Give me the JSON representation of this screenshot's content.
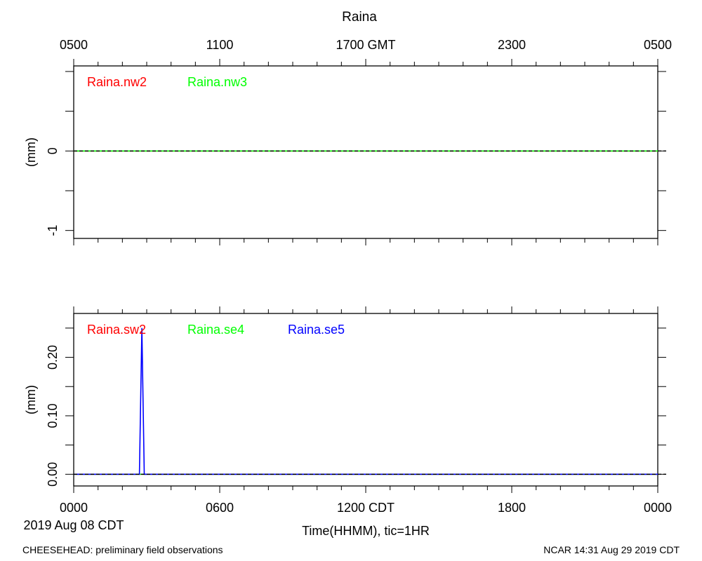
{
  "page": {
    "title": "Raina",
    "footer_left": "CHEESEHEAD: preliminary field observations",
    "footer_right": "NCAR 14:31 Aug 29 2019 CDT",
    "date_label": "2019 Aug 08 CDT",
    "xlabel": "Time(HHMM), tic=1HR",
    "top_ticks": [
      "0500",
      "1100",
      "1700 GMT",
      "2300",
      "0500"
    ],
    "bottom_ticks": [
      "0000",
      "0600",
      "1200 CDT",
      "1800",
      "0000"
    ]
  },
  "chart_data": [
    {
      "type": "line",
      "ylabel": "(mm)",
      "x_unit": "hours CDT",
      "xlim": [
        0,
        24
      ],
      "ylim": [
        -1.1,
        1.07
      ],
      "yticks": [
        {
          "value": 0,
          "label": "0"
        },
        {
          "value": -1,
          "label": "-1"
        }
      ],
      "grid": false,
      "series": [
        {
          "name": "Raina.nw2",
          "color": "#ff0000",
          "dashed": false,
          "x": [
            0,
            24
          ],
          "y": [
            0,
            0
          ]
        },
        {
          "name": "Raina.nw3",
          "color": "#00ff00",
          "dashed": false,
          "x": [
            0,
            24
          ],
          "y": [
            0,
            0
          ]
        }
      ],
      "reference_line": {
        "value": 0,
        "color": "#000000",
        "dashed": true
      }
    },
    {
      "type": "line",
      "ylabel": "(mm)",
      "x_unit": "hours CDT",
      "xlim": [
        0,
        24
      ],
      "ylim": [
        -0.02,
        0.275
      ],
      "yticks": [
        {
          "value": 0.0,
          "label": "0.00"
        },
        {
          "value": 0.1,
          "label": "0.10"
        },
        {
          "value": 0.2,
          "label": "0.20"
        }
      ],
      "grid": false,
      "series": [
        {
          "name": "Raina.sw2",
          "color": "#ff0000",
          "dashed": false,
          "x": [
            0,
            24
          ],
          "y": [
            0,
            0
          ]
        },
        {
          "name": "Raina.se4",
          "color": "#00ff00",
          "dashed": false,
          "x": [
            0,
            24
          ],
          "y": [
            0,
            0
          ]
        },
        {
          "name": "Raina.se5",
          "color": "#0000ff",
          "dashed": false,
          "x": [
            0,
            2.7,
            2.8,
            2.9,
            24
          ],
          "y": [
            0,
            0,
            0.25,
            0,
            0
          ]
        }
      ],
      "reference_line": {
        "value": 0,
        "color": "#000000",
        "dashed": true
      }
    }
  ]
}
